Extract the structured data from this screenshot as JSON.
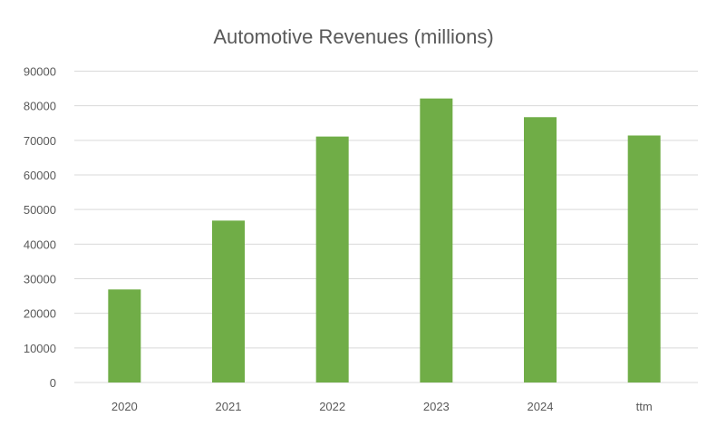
{
  "chart_data": {
    "type": "bar",
    "title": "Automotive Revenues (millions)",
    "xlabel": "",
    "ylabel": "",
    "categories": [
      "2020",
      "2021",
      "2022",
      "2023",
      "2024",
      "ttm"
    ],
    "values": [
      26900,
      46800,
      71100,
      82100,
      76700,
      71400
    ],
    "ylim": [
      0,
      90000
    ],
    "yticks": [
      0,
      10000,
      20000,
      30000,
      40000,
      50000,
      60000,
      70000,
      80000,
      90000
    ],
    "grid": true,
    "legend": "none",
    "bar_color": "#70ad47"
  }
}
